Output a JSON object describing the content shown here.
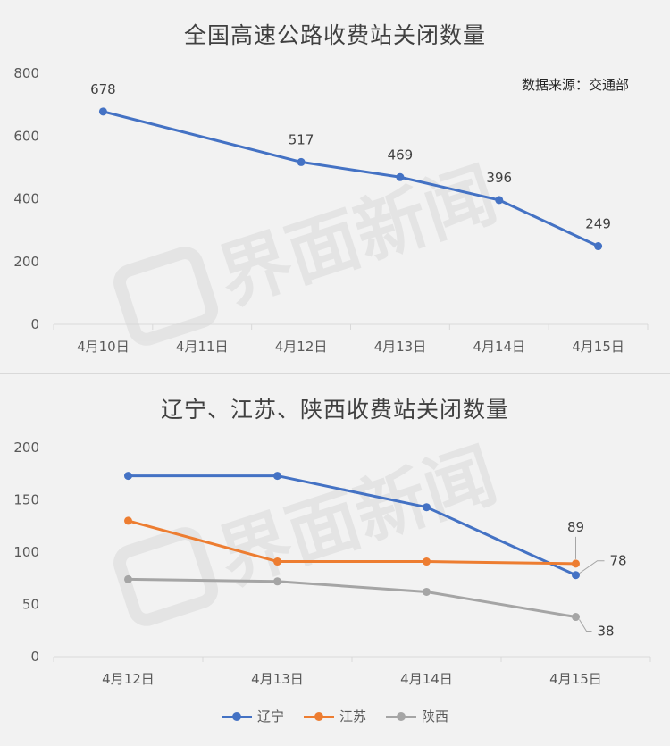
{
  "chart_data": [
    {
      "type": "line",
      "title": "全国高速公路收费站关闭数量",
      "annotation": "数据来源：交通部",
      "categories": [
        "4月10日",
        "4月11日",
        "4月12日",
        "4月13日",
        "4月14日",
        "4月15日"
      ],
      "series": [
        {
          "values": [
            678,
            null,
            517,
            469,
            396,
            249
          ],
          "color": "#4472c4"
        }
      ],
      "data_labels": [
        "678",
        "",
        "517",
        "469",
        "396",
        "249"
      ],
      "y_ticks": [
        "800",
        "600",
        "400",
        "200",
        "0"
      ],
      "ylim": [
        0,
        800
      ],
      "grid": false
    },
    {
      "type": "line",
      "title": "辽宁、江苏、陕西收费站关闭数量",
      "categories": [
        "4月12日",
        "4月13日",
        "4月14日",
        "4月15日"
      ],
      "series": [
        {
          "name": "辽宁",
          "values": [
            173,
            173,
            143,
            78
          ],
          "color": "#4472c4"
        },
        {
          "name": "江苏",
          "values": [
            130,
            91,
            91,
            89
          ],
          "color": "#ed7d31"
        },
        {
          "name": "陕西",
          "values": [
            74,
            72,
            62,
            38
          ],
          "color": "#a5a5a5"
        }
      ],
      "data_labels": {
        "辽宁": "78",
        "江苏": "89",
        "陕西": "38"
      },
      "y_ticks": [
        "200",
        "150",
        "100",
        "50",
        "0"
      ],
      "ylim": [
        0,
        200
      ],
      "legend": "bottom",
      "grid": false
    }
  ],
  "watermark": "界面新闻"
}
